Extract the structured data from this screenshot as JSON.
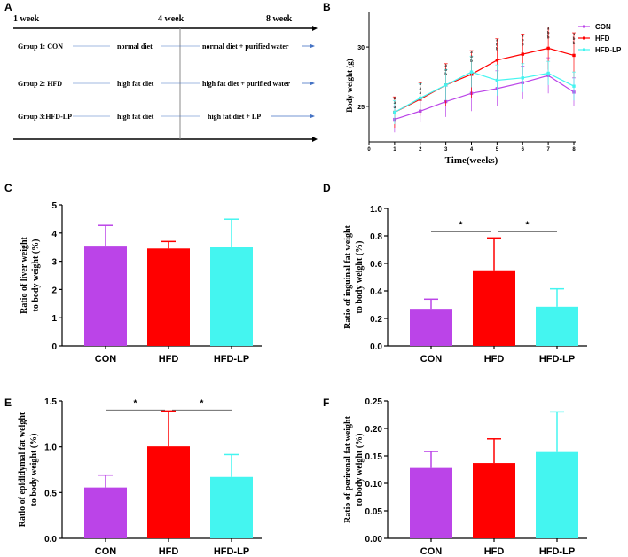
{
  "panel_a": {
    "letter": "A",
    "weeks": [
      "1 week",
      "4 week",
      "8 week"
    ],
    "groups": [
      {
        "name": "Group 1: CON",
        "phase1": "normal diet",
        "phase2": "normal diet + purified water"
      },
      {
        "name": "Group 2: HFD",
        "phase1": "high fat diet",
        "phase2": "high fat diet + purified water"
      },
      {
        "name": "Group 3:HFD-LP",
        "phase1": "high fat diet",
        "phase2": "high fat diet  + LP"
      }
    ],
    "arrow_color": "#4472c4"
  },
  "colors": {
    "CON": "#bb44e8",
    "HFD": "#ff0000",
    "HFD-LP": "#44f5f0"
  },
  "chart_data": [
    {
      "id": "B",
      "letter": "B",
      "type": "line",
      "xlabel": "Time(weeks)",
      "ylabel": "Body weight (g)",
      "x": [
        1,
        2,
        3,
        4,
        5,
        6,
        7,
        8
      ],
      "xticks": [
        0,
        1,
        2,
        3,
        4,
        5,
        6,
        7,
        8
      ],
      "xlim": [
        0,
        8
      ],
      "yticks": [
        25,
        30
      ],
      "ylim": [
        22,
        33
      ],
      "legend": "right",
      "series": [
        {
          "name": "CON",
          "values": [
            23.9,
            24.6,
            25.4,
            26.1,
            26.5,
            27.0,
            27.6,
            26.2
          ],
          "errors": [
            1.1,
            0.9,
            1.3,
            1.5,
            1.5,
            1.4,
            1.5,
            1.2
          ]
        },
        {
          "name": "HFD",
          "values": [
            24.5,
            25.6,
            26.8,
            27.7,
            28.9,
            29.4,
            29.9,
            29.3
          ],
          "errors": [
            1.3,
            1.4,
            1.8,
            2.0,
            1.8,
            1.7,
            1.8,
            1.9
          ]
        },
        {
          "name": "HFD-LP",
          "values": [
            24.5,
            25.7,
            26.8,
            27.9,
            27.2,
            27.4,
            27.8,
            26.7
          ],
          "errors": [
            1.0,
            1.2,
            1.3,
            1.3,
            1.3,
            1.2,
            1.0,
            1.2
          ]
        }
      ],
      "significance_letters": [
        [
          "a",
          "a",
          "a"
        ],
        [
          "a",
          "a",
          "a"
        ],
        [
          "a",
          "a",
          "b"
        ],
        [
          "a",
          "a",
          "b"
        ],
        [
          "a",
          "b",
          "b"
        ],
        [
          "a",
          "b",
          "b"
        ],
        [
          "a",
          "b",
          "b"
        ],
        [
          "a",
          "b",
          "b"
        ]
      ]
    },
    {
      "id": "C",
      "letter": "C",
      "type": "bar",
      "ylabel_lines": [
        "Ratio of liver  weight",
        "to body weight (%)"
      ],
      "categories": [
        "CON",
        "HFD",
        "HFD-LP"
      ],
      "values": [
        3.55,
        3.45,
        3.52
      ],
      "errors": [
        0.72,
        0.25,
        0.97
      ],
      "yticks": [
        "0",
        "1",
        "2",
        "3",
        "4",
        "5"
      ],
      "ylim": [
        0,
        5
      ],
      "annotations": []
    },
    {
      "id": "D",
      "letter": "D",
      "type": "bar",
      "ylabel_lines": [
        "Ratio of inguinal fat weight",
        "to body weight (%)"
      ],
      "categories": [
        "CON",
        "HFD",
        "HFD-LP"
      ],
      "values": [
        0.27,
        0.55,
        0.285
      ],
      "errors": [
        0.07,
        0.235,
        0.13
      ],
      "yticks": [
        "0.0",
        "0.2",
        "0.4",
        "0.6",
        "0.8",
        "1.0"
      ],
      "ylim": [
        0,
        1.0
      ],
      "annotations": [
        {
          "from": 0,
          "to": 1,
          "label": "*",
          "y": 0.83
        },
        {
          "from": 1,
          "to": 2,
          "label": "*",
          "y": 0.83
        }
      ]
    },
    {
      "id": "E",
      "letter": "E",
      "type": "bar",
      "ylabel_lines": [
        "Ratio of epididymal fat weight",
        "to body weight (%)"
      ],
      "categories": [
        "CON",
        "HFD",
        "HFD-LP"
      ],
      "values": [
        0.555,
        1.005,
        0.67
      ],
      "errors": [
        0.135,
        0.385,
        0.245
      ],
      "yticks": [
        "0.0",
        "0.5",
        "1.0",
        "1.5"
      ],
      "ylim": [
        0,
        1.5
      ],
      "annotations": [
        {
          "from": 0,
          "to": 1,
          "label": "*",
          "y": 1.4
        },
        {
          "from": 1,
          "to": 2,
          "label": "*",
          "y": 1.4
        }
      ]
    },
    {
      "id": "F",
      "letter": "F",
      "type": "bar",
      "ylabel_lines": [
        "Ratio of perirenal fat weight",
        "to body weight (%)"
      ],
      "categories": [
        "CON",
        "HFD",
        "HFD-LP"
      ],
      "values": [
        0.128,
        0.137,
        0.157
      ],
      "errors": [
        0.03,
        0.044,
        0.073
      ],
      "yticks": [
        "0.00",
        "0.05",
        "0.10",
        "0.15",
        "0.20",
        "0.25"
      ],
      "ylim": [
        0,
        0.25
      ],
      "annotations": []
    }
  ]
}
